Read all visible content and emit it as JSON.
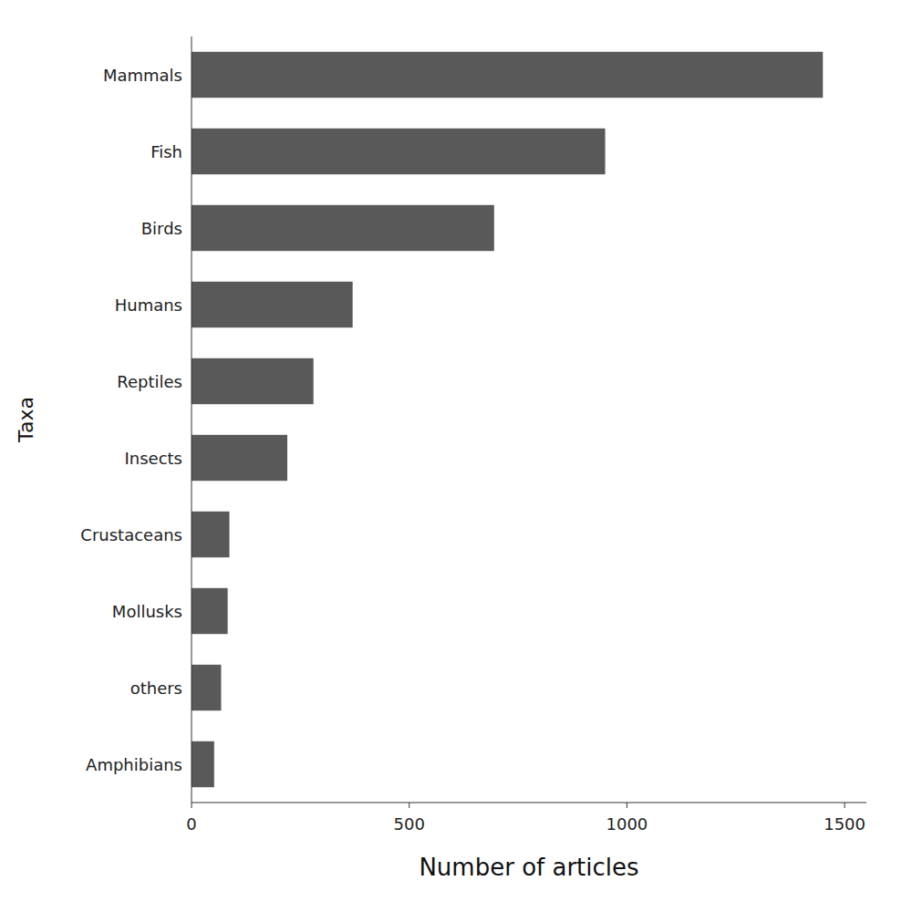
{
  "chart_data": {
    "type": "bar",
    "orientation": "horizontal",
    "categories": [
      "Mammals",
      "Fish",
      "Birds",
      "Humans",
      "Reptiles",
      "Insects",
      "Crustaceans",
      "Mollusks",
      "others",
      "Amphibians"
    ],
    "values": [
      1450,
      950,
      695,
      370,
      280,
      220,
      87,
      83,
      68,
      52
    ],
    "color": "#595959",
    "xlabel": "Number of articles",
    "ylabel": "Taxa",
    "xlim": [
      0,
      1550
    ],
    "xticks": [
      0,
      500,
      1000,
      1500
    ],
    "grid": false
  }
}
